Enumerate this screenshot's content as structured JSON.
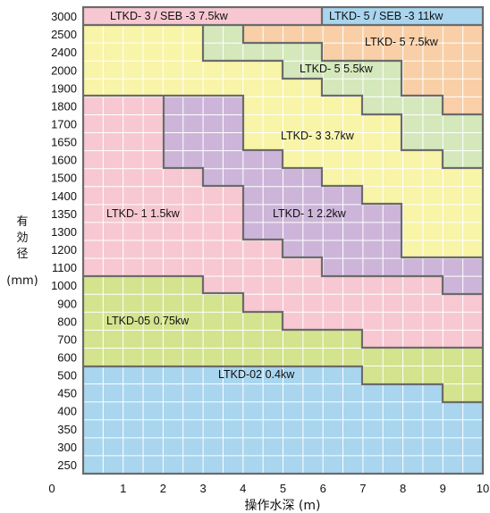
{
  "axes": {
    "y_title_chars": [
      "有",
      "効",
      "径"
    ],
    "y_unit": "(mm)",
    "x_title": "操作水深 (m)",
    "x_ticks": [
      "0",
      "1",
      "2",
      "3",
      "4",
      "5",
      "6",
      "7",
      "8",
      "9",
      "10"
    ],
    "y_ticks": [
      "3000",
      "2500",
      "2400",
      "2000",
      "1900",
      "1800",
      "1700",
      "1650",
      "1600",
      "1500",
      "1400",
      "1350",
      "1300",
      "1200",
      "1100",
      "1000",
      "900",
      "800",
      "700",
      "600",
      "500",
      "450",
      "400",
      "350",
      "300",
      "250"
    ]
  },
  "regions": [
    {
      "id": "ltkd-02",
      "label": "LTKD-02 0.4kw",
      "color": "#a9d5ee"
    },
    {
      "id": "ltkd-05",
      "label": "LTKD-05 0.75kw",
      "color": "#d4e38e"
    },
    {
      "id": "ltkd-1-15",
      "label": "LTKD- 1  1.5kw",
      "color": "#f7c8d2"
    },
    {
      "id": "ltkd-1-22",
      "label": "LTKD- 1  2.2kw",
      "color": "#cdb5da"
    },
    {
      "id": "ltkd-3-37",
      "label": "LTKD- 3  3.7kw",
      "color": "#f8f4a8"
    },
    {
      "id": "ltkd-5-55",
      "label": "LTKD- 5  5.5kw",
      "color": "#d4e8bb"
    },
    {
      "id": "ltkd-5-75",
      "label": "LTKD- 5  7.5kw",
      "color": "#f9cfa7"
    },
    {
      "id": "ltkd-3-seb3",
      "label": "LTKD- 3  / SEB -3 7.5kw",
      "color": "#f7c8d2"
    },
    {
      "id": "ltkd-5-seb3",
      "label": "LTKD- 5  / SEB -3 11kw",
      "color": "#a9d5ee"
    }
  ]
}
